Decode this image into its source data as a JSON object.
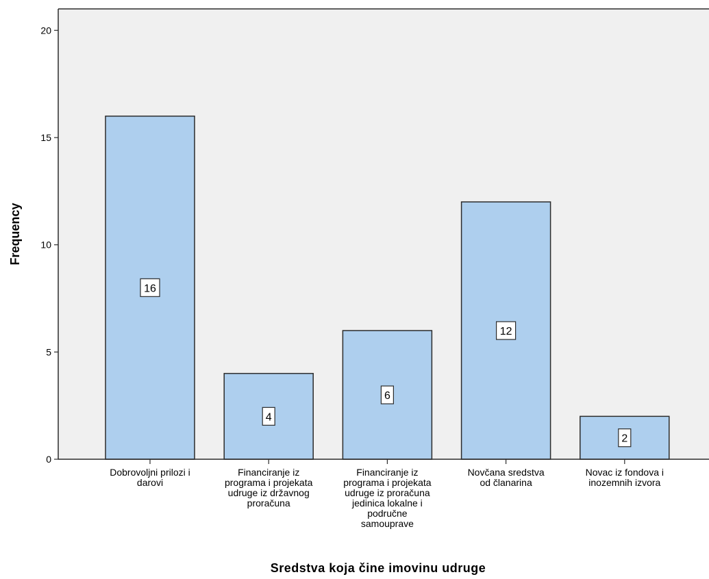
{
  "chart_data": {
    "type": "bar",
    "categories": [
      [
        "Dobrovoljni prilozi i",
        "darovi"
      ],
      [
        "Financiranje iz",
        "programa i projekata",
        "udruge iz državnog",
        "proračuna"
      ],
      [
        "Financiranje iz",
        "programa i projekata",
        "udruge iz proračuna",
        "jedinica lokalne i",
        "područne",
        "samouprave"
      ],
      [
        "Novčana sredstva",
        "od članarina"
      ],
      [
        "Novac iz fondova i",
        "inozemnih izvora"
      ]
    ],
    "values": [
      16,
      4,
      6,
      12,
      2
    ],
    "data_labels": [
      "16",
      "4",
      "6",
      "12",
      "2"
    ],
    "xlabel": "Sredstva koja čine imovinu udruge",
    "ylabel": "Frequency",
    "ylim": [
      0,
      21
    ],
    "yticks": [
      0,
      5,
      10,
      15,
      20
    ],
    "ytick_labels": [
      "0",
      "5",
      "10",
      "15",
      "20"
    ],
    "colors": {
      "bar_fill": "#aecfee",
      "bar_stroke": "#2b2b2b",
      "plot_background": "#f0f0f0",
      "axis": "#2b2b2b",
      "text": "#000000"
    },
    "grid": false,
    "legend": "none"
  }
}
